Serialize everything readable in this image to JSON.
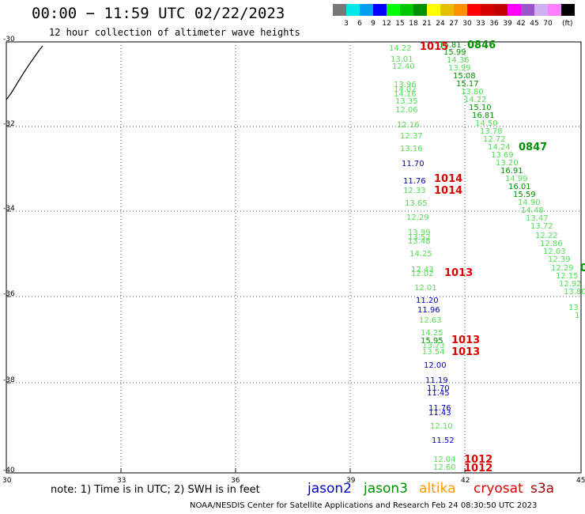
{
  "title": "00:00 − 11:59 UTC 02/22/2023",
  "subtitle": "12 hour collection of altimeter wave heights",
  "scale": {
    "colors": [
      "#787878",
      "#00e8e8",
      "#00a0f0",
      "#0000ff",
      "#00ff00",
      "#00c800",
      "#009000",
      "#ffff00",
      "#e6c000",
      "#ff9000",
      "#ff0000",
      "#d60000",
      "#c00000",
      "#ff00ff",
      "#9955c9",
      "#d0b0f0",
      "#ff80ff",
      "#000000"
    ],
    "labels": [
      "3",
      "6",
      "9",
      "12",
      "15",
      "18",
      "21",
      "24",
      "27",
      "30",
      "33",
      "36",
      "39",
      "42",
      "45",
      "70"
    ],
    "unit": "(ft)"
  },
  "axes": {
    "lat_labels": [
      "-30",
      "-32",
      "-34",
      "-36",
      "-38",
      "-40"
    ],
    "lon_labels": [
      "30",
      "33",
      "36",
      "39",
      "42",
      "45"
    ]
  },
  "observations": [
    {
      "text": "14.22",
      "color": "#55dd55"
    },
    {
      "text": "13.01",
      "color": "#55dd55"
    },
    {
      "text": "12.40",
      "color": "#55dd55"
    },
    {
      "text": "13.96",
      "color": "#55dd55"
    },
    {
      "text": "14.02",
      "color": "#55dd55"
    },
    {
      "text": "14.16",
      "color": "#55dd55"
    },
    {
      "text": "13.35",
      "color": "#55dd55"
    },
    {
      "text": "12.06",
      "color": "#55dd55"
    },
    {
      "text": "12.16",
      "color": "#55dd55"
    },
    {
      "text": "12.37",
      "color": "#55dd55"
    },
    {
      "text": "13.16",
      "color": "#55dd55"
    },
    {
      "text": "11.70",
      "color": "#0000cc"
    },
    {
      "text": "11.76",
      "color": "#0000cc"
    },
    {
      "text": "12.33",
      "color": "#55dd55"
    },
    {
      "text": "13.65",
      "color": "#55dd55"
    },
    {
      "text": "12.29",
      "color": "#55dd55"
    },
    {
      "text": "13.99",
      "color": "#55dd55"
    },
    {
      "text": "13.52",
      "color": "#55dd55"
    },
    {
      "text": "13.48",
      "color": "#55dd55"
    },
    {
      "text": "14.25",
      "color": "#55dd55"
    },
    {
      "text": "12.43",
      "color": "#55dd55"
    },
    {
      "text": "12.02",
      "color": "#55dd55"
    },
    {
      "text": "12.01",
      "color": "#55dd55"
    },
    {
      "text": "11.20",
      "color": "#0000cc"
    },
    {
      "text": "11.96",
      "color": "#0000cc"
    },
    {
      "text": "12.63",
      "color": "#55dd55"
    },
    {
      "text": "14.25",
      "color": "#55dd55"
    },
    {
      "text": "15.95",
      "color": "#009000"
    },
    {
      "text": "13.73",
      "color": "#55dd55"
    },
    {
      "text": "13.54",
      "color": "#55dd55"
    },
    {
      "text": "12.00",
      "color": "#0000cc"
    },
    {
      "text": "11.19",
      "color": "#0000cc"
    },
    {
      "text": "11.70",
      "color": "#0000cc"
    },
    {
      "text": "11.45",
      "color": "#0000cc"
    },
    {
      "text": "11.76",
      "color": "#0000cc"
    },
    {
      "text": "11.43",
      "color": "#0000cc"
    },
    {
      "text": "12.10",
      "color": "#55dd55"
    },
    {
      "text": "11.52",
      "color": "#0000cc"
    },
    {
      "text": "12.04",
      "color": "#55dd55"
    },
    {
      "text": "12.60",
      "color": "#55dd55"
    },
    {
      "text": "15.81",
      "color": "#009000"
    },
    {
      "text": "15.99",
      "color": "#009000"
    },
    {
      "text": "14.36",
      "color": "#55dd55"
    },
    {
      "text": "13.99",
      "color": "#55dd55"
    },
    {
      "text": "15.08",
      "color": "#009000"
    },
    {
      "text": "15.17",
      "color": "#009000"
    },
    {
      "text": "13.80",
      "color": "#55dd55"
    },
    {
      "text": "14.22",
      "color": "#55dd55"
    },
    {
      "text": "15.10",
      "color": "#009000"
    },
    {
      "text": "16.81",
      "color": "#009000"
    },
    {
      "text": "14.50",
      "color": "#55dd55"
    },
    {
      "text": "13.78",
      "color": "#55dd55"
    },
    {
      "text": "12.72",
      "color": "#55dd55"
    },
    {
      "text": "14.24",
      "color": "#55dd55"
    },
    {
      "text": "13.69",
      "color": "#55dd55"
    },
    {
      "text": "13.20",
      "color": "#55dd55"
    },
    {
      "text": "16.91",
      "color": "#009000"
    },
    {
      "text": "14.99",
      "color": "#55dd55"
    },
    {
      "text": "16.01",
      "color": "#009000"
    },
    {
      "text": "15.59",
      "color": "#009000"
    },
    {
      "text": "14.90",
      "color": "#55dd55"
    },
    {
      "text": "14.48",
      "color": "#55dd55"
    },
    {
      "text": "13.47",
      "color": "#55dd55"
    },
    {
      "text": "13.72",
      "color": "#55dd55"
    },
    {
      "text": "12.22",
      "color": "#55dd55"
    },
    {
      "text": "12.86",
      "color": "#55dd55"
    },
    {
      "text": "12.03",
      "color": "#55dd55"
    },
    {
      "text": "12.39",
      "color": "#55dd55"
    },
    {
      "text": "12.29",
      "color": "#55dd55"
    },
    {
      "text": "12.15",
      "color": "#55dd55"
    },
    {
      "text": "12.92",
      "color": "#55dd55"
    },
    {
      "text": "13.80",
      "color": "#55dd55"
    },
    {
      "text": "13",
      "color": "#55dd55"
    },
    {
      "text": "1",
      "color": "#55dd55"
    }
  ],
  "time_labels": [
    {
      "text": "1015",
      "color": "#dd0000"
    },
    {
      "text": "1014",
      "color": "#dd0000"
    },
    {
      "text": "1014",
      "color": "#dd0000"
    },
    {
      "text": "1013",
      "color": "#dd0000"
    },
    {
      "text": "1013",
      "color": "#dd0000"
    },
    {
      "text": "1013",
      "color": "#dd0000"
    },
    {
      "text": "1012",
      "color": "#dd0000"
    },
    {
      "text": "1012",
      "color": "#dd0000"
    },
    {
      "text": "0846",
      "color": "#009000"
    },
    {
      "text": "0847",
      "color": "#009000"
    },
    {
      "text": "0",
      "color": "#009000"
    }
  ],
  "note": "note: 1) Time is in UTC; 2) SWH is in feet",
  "legend": [
    {
      "text": "jason2",
      "color": "#0000cc"
    },
    {
      "text": "jason3",
      "color": "#009000"
    },
    {
      "text": "altika",
      "color": "#ff9900"
    },
    {
      "text": "cryosat",
      "color": "#dd0000"
    },
    {
      "text": "s3a",
      "color": "#990000"
    }
  ],
  "credit": "NOAA/NESDIS Center for Satellite Applications and Research   Feb 24 08:30:50 UTC 2023"
}
